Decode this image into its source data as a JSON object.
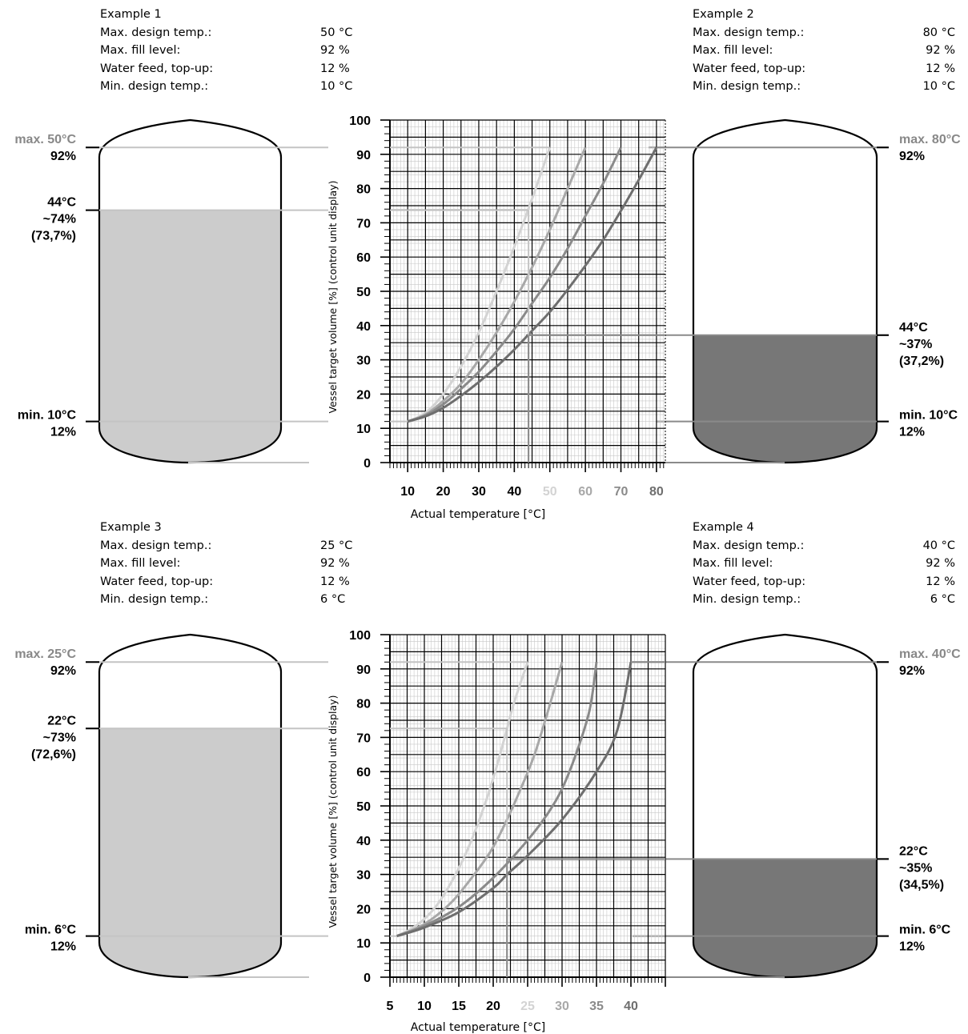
{
  "colors": {
    "grid_major": "#000000",
    "grid_minor": "#c8c8c8",
    "curve_a": "#d3d3d3",
    "curve_b": "#a8a8a8",
    "curve_c": "#8a8a8a",
    "curve_d": "#6e6e6e",
    "fill_light": "#cccccc",
    "fill_dark": "#777777",
    "line_light": "#c4c4c4",
    "line_dark": "#8a8a8a",
    "text_grey": "#888888"
  },
  "examples": [
    {
      "id": "ex1",
      "title": "Example 1",
      "side": "left",
      "rows": [
        {
          "label": "Max. design temp.:",
          "value": "50 °C"
        },
        {
          "label": "Max. fill level:",
          "value": "92 %"
        },
        {
          "label": "Water feed, top-up:",
          "value": "12 %"
        },
        {
          "label": "Min. design temp.:",
          "value": "10 °C"
        }
      ],
      "fill_percent": 73.7,
      "fill_style": "light",
      "annotations": {
        "max": [
          "max. 50°C",
          "92%"
        ],
        "current": [
          "44°C",
          "~74%",
          "(73,7%)"
        ],
        "min": [
          "min. 10°C",
          "12%"
        ]
      }
    },
    {
      "id": "ex2",
      "title": "Example 2",
      "side": "right",
      "rows": [
        {
          "label": "Max. design temp.:",
          "value": "80 °C"
        },
        {
          "label": "Max. fill level:",
          "value": "92 %"
        },
        {
          "label": "Water feed, top-up:",
          "value": "12 %"
        },
        {
          "label": "Min. design temp.:",
          "value": "10 °C"
        }
      ],
      "fill_percent": 37.2,
      "fill_style": "dark",
      "annotations": {
        "max": [
          "max. 80°C",
          "92%"
        ],
        "current": [
          "44°C",
          "~37%",
          "(37,2%)"
        ],
        "min": [
          "min. 10°C",
          "12%"
        ]
      }
    },
    {
      "id": "ex3",
      "title": "Example 3",
      "side": "left",
      "rows": [
        {
          "label": "Max. design temp.:",
          "value": "25 °C"
        },
        {
          "label": "Max. fill level:",
          "value": "92 %"
        },
        {
          "label": "Water feed, top-up:",
          "value": "12 %"
        },
        {
          "label": "Min. design temp.:",
          "value": "6 °C"
        }
      ],
      "fill_percent": 72.6,
      "fill_style": "light",
      "annotations": {
        "max": [
          "max. 25°C",
          "92%"
        ],
        "current": [
          "22°C",
          "~73%",
          "(72,6%)"
        ],
        "min": [
          "min. 6°C",
          "12%"
        ]
      }
    },
    {
      "id": "ex4",
      "title": "Example 4",
      "side": "right",
      "rows": [
        {
          "label": "Max. design temp.:",
          "value": "40 °C"
        },
        {
          "label": "Max. fill level:",
          "value": "92 %"
        },
        {
          "label": "Water feed, top-up:",
          "value": "12 %"
        },
        {
          "label": "Min. design temp.:",
          "value": "6 °C"
        }
      ],
      "fill_percent": 34.5,
      "fill_style": "dark",
      "annotations": {
        "max": [
          "max. 40°C",
          "92%"
        ],
        "current": [
          "22°C",
          "~35%",
          "(34,5%)"
        ],
        "min": [
          "min. 6°C",
          "12%"
        ]
      }
    }
  ],
  "chart_data": [
    {
      "type": "line",
      "xlabel": "Actual temperature [°C]",
      "ylabel": "Vessel target volume [%] (control unit display)",
      "xlim": [
        5,
        82.5
      ],
      "ylim": [
        0,
        100
      ],
      "x_ticks": [
        10,
        20,
        30,
        40,
        50,
        60,
        70,
        80
      ],
      "x_tick_labels": [
        "10",
        "20",
        "30",
        "40",
        "50",
        "60",
        "70",
        "80"
      ],
      "y_ticks": [
        0,
        10,
        20,
        30,
        40,
        50,
        60,
        70,
        80,
        90,
        100
      ],
      "y_tick_labels": [
        "0",
        "10",
        "20",
        "30",
        "40",
        "50",
        "60",
        "70",
        "80",
        "90",
        "100"
      ],
      "series": [
        {
          "max_temp": 50,
          "color": "curve_a",
          "points": [
            [
              10,
              12
            ],
            [
              15,
              14.5
            ],
            [
              20,
              20
            ],
            [
              25,
              28
            ],
            [
              30,
              38
            ],
            [
              35,
              50
            ],
            [
              40,
              63
            ],
            [
              45,
              77
            ],
            [
              50,
              92
            ]
          ]
        },
        {
          "max_temp": 60,
          "color": "curve_b",
          "points": [
            [
              10,
              12
            ],
            [
              15,
              14
            ],
            [
              20,
              18
            ],
            [
              25,
              23
            ],
            [
              30,
              30
            ],
            [
              35,
              38
            ],
            [
              40,
              47
            ],
            [
              45,
              57
            ],
            [
              50,
              68
            ],
            [
              55,
              80
            ],
            [
              60,
              92
            ]
          ]
        },
        {
          "max_temp": 70,
          "color": "curve_c",
          "points": [
            [
              10,
              12
            ],
            [
              15,
              13.8
            ],
            [
              20,
              17
            ],
            [
              25,
              21.5
            ],
            [
              30,
              26.5
            ],
            [
              35,
              32.5
            ],
            [
              40,
              39
            ],
            [
              45,
              46.5
            ],
            [
              50,
              54
            ],
            [
              55,
              62.5
            ],
            [
              60,
              72
            ],
            [
              65,
              81.5
            ],
            [
              70,
              92
            ]
          ]
        },
        {
          "max_temp": 80,
          "color": "curve_d",
          "points": [
            [
              10,
              12
            ],
            [
              15,
              13.5
            ],
            [
              20,
              16
            ],
            [
              25,
              19.5
            ],
            [
              30,
              23.5
            ],
            [
              35,
              28
            ],
            [
              40,
              33
            ],
            [
              45,
              38.5
            ],
            [
              50,
              44
            ],
            [
              55,
              50.5
            ],
            [
              60,
              57.5
            ],
            [
              65,
              65
            ],
            [
              70,
              73.5
            ],
            [
              75,
              82.5
            ],
            [
              80,
              92
            ]
          ]
        }
      ],
      "markers": [
        {
          "x": 44,
          "y": 73.7,
          "to": "left",
          "style": "light"
        },
        {
          "x": 44,
          "y": 37.2,
          "to": "right",
          "style": "dark"
        }
      ]
    },
    {
      "type": "line",
      "xlabel": "Actual temperature [°C]",
      "ylabel": "Vessel target volume [%] (control unit display)",
      "xlim": [
        5,
        45
      ],
      "ylim": [
        0,
        100
      ],
      "x_ticks": [
        5,
        10,
        15,
        20,
        25,
        30,
        35,
        40
      ],
      "x_tick_labels": [
        "5",
        "10",
        "15",
        "20",
        "25",
        "30",
        "35",
        "40"
      ],
      "y_ticks": [
        0,
        10,
        20,
        30,
        40,
        50,
        60,
        70,
        80,
        90,
        100
      ],
      "y_tick_labels": [
        "0",
        "10",
        "20",
        "30",
        "40",
        "50",
        "60",
        "70",
        "80",
        "90",
        "100"
      ],
      "series": [
        {
          "max_temp": 25,
          "color": "curve_a",
          "points": [
            [
              6,
              12
            ],
            [
              8,
              14
            ],
            [
              10,
              17
            ],
            [
              12,
              21.5
            ],
            [
              14,
              28
            ],
            [
              16,
              36
            ],
            [
              18,
              46
            ],
            [
              20,
              58
            ],
            [
              22,
              72.5
            ],
            [
              23,
              80
            ],
            [
              25,
              92
            ]
          ]
        },
        {
          "max_temp": 30,
          "color": "curve_b",
          "points": [
            [
              6,
              12
            ],
            [
              10,
              15.5
            ],
            [
              14,
              22
            ],
            [
              18,
              32
            ],
            [
              20,
              38
            ],
            [
              22,
              46
            ],
            [
              24,
              55
            ],
            [
              26,
              65
            ],
            [
              28,
              78
            ],
            [
              30,
              92
            ]
          ]
        },
        {
          "max_temp": 35,
          "color": "curve_c",
          "points": [
            [
              6,
              12
            ],
            [
              10,
              15
            ],
            [
              15,
              20.5
            ],
            [
              20,
              29
            ],
            [
              25,
              40
            ],
            [
              28,
              48
            ],
            [
              30,
              55
            ],
            [
              32,
              65
            ],
            [
              34,
              78
            ],
            [
              35,
              92
            ]
          ]
        },
        {
          "max_temp": 40,
          "color": "curve_d",
          "points": [
            [
              6,
              12
            ],
            [
              10,
              14.5
            ],
            [
              15,
              19
            ],
            [
              20,
              26
            ],
            [
              22,
              30
            ],
            [
              25,
              35.5
            ],
            [
              30,
              46
            ],
            [
              35,
              60
            ],
            [
              38,
              72
            ],
            [
              40,
              92
            ]
          ]
        }
      ],
      "markers": [
        {
          "x": 22,
          "y": 72.6,
          "to": "left",
          "style": "light"
        },
        {
          "x": 22,
          "y": 34.5,
          "to": "right",
          "style": "dark"
        }
      ]
    }
  ]
}
